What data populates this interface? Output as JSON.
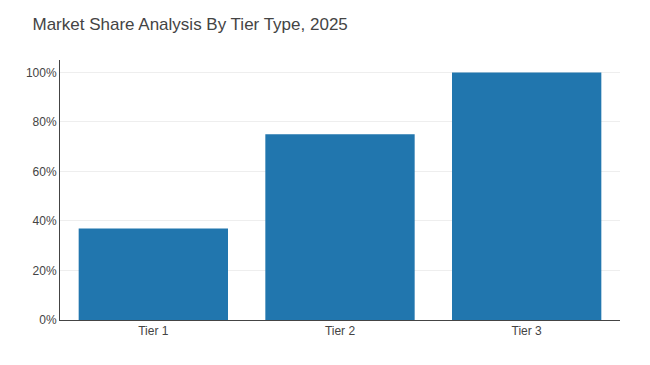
{
  "chart_data": {
    "type": "bar",
    "title": "Market Share Analysis By Tier Type, 2025",
    "categories": [
      "Tier 1",
      "Tier 2",
      "Tier 3"
    ],
    "values": [
      37,
      75,
      100
    ],
    "color": "#2176ae",
    "ylim": [
      0,
      105
    ],
    "yticks": [
      {
        "value": 0,
        "label": "0%"
      },
      {
        "value": 20,
        "label": "20%"
      },
      {
        "value": 40,
        "label": "40%"
      },
      {
        "value": 60,
        "label": "60%"
      },
      {
        "value": 80,
        "label": "80%"
      },
      {
        "value": 100,
        "label": "100%"
      }
    ],
    "grid": true
  }
}
